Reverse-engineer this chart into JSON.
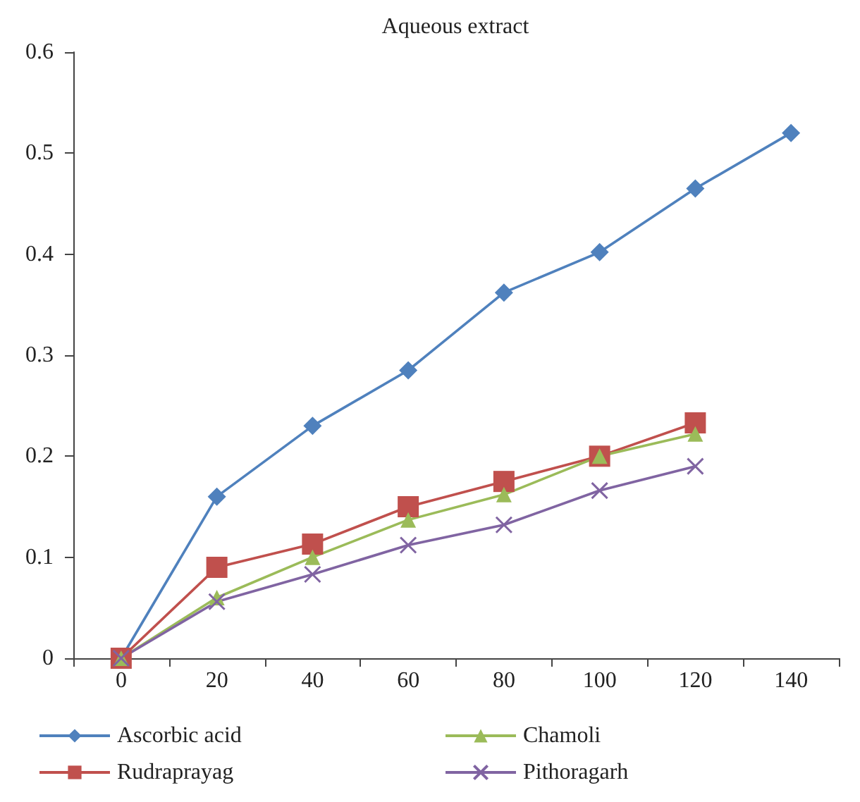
{
  "chart_data": {
    "type": "line",
    "title": "Aqueous extract",
    "categories": [
      "0",
      "20",
      "40",
      "60",
      "80",
      "100",
      "120",
      "140"
    ],
    "series": [
      {
        "name": "Ascorbic acid",
        "color": "#4f81bd",
        "marker": "diamond",
        "values": [
          0,
          0.16,
          0.23,
          0.285,
          0.362,
          0.402,
          0.465,
          0.52
        ]
      },
      {
        "name": "Rudraprayag",
        "color": "#c0504d",
        "marker": "square",
        "values": [
          0,
          0.09,
          0.113,
          0.15,
          0.175,
          0.2,
          0.233,
          null
        ]
      },
      {
        "name": "Chamoli",
        "color": "#9bbb59",
        "marker": "triangle",
        "values": [
          0,
          0.06,
          0.1,
          0.137,
          0.162,
          0.2,
          0.222,
          null
        ]
      },
      {
        "name": "Pithoragarh",
        "color": "#8064a2",
        "marker": "cross",
        "values": [
          0,
          0.056,
          0.083,
          0.112,
          0.132,
          0.166,
          0.19,
          null
        ]
      }
    ],
    "ylim": [
      0,
      0.6
    ],
    "yticks": [
      0,
      0.1,
      0.2,
      0.3,
      0.4,
      0.5,
      0.6
    ],
    "grid": false,
    "legend": "bottom"
  }
}
